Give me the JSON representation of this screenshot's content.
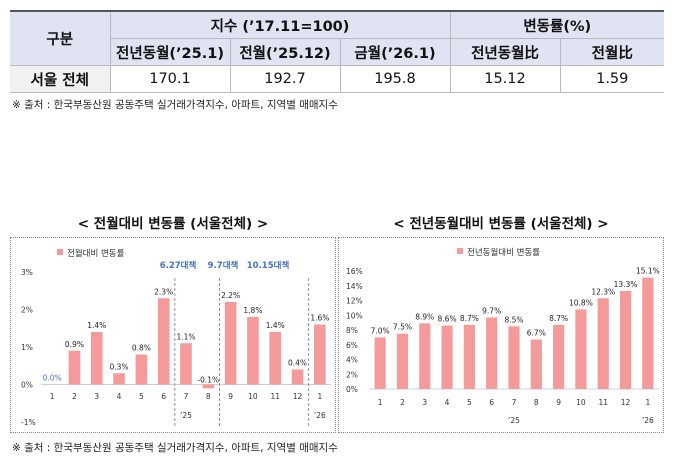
{
  "summary_table": {
    "col_group_label": "구분",
    "index_group_label": "지수 (’17.11=100)",
    "change_group_label": "변동률(%)",
    "sub_headers": [
      "전년동월(’25.1)",
      "전월(’25.12)",
      "금월(’26.1)",
      "전년동월比",
      "전월比"
    ],
    "row_label": "서울 전체",
    "row_values": [
      "170.1",
      "192.7",
      "195.8",
      "15.12",
      "1.59"
    ]
  },
  "source_note": "※ 출처 : 한국부동산원 공동주택 실거래가격지수, 아파트, 지역별 매매지수",
  "bar_color": "#f49a9a",
  "policy_label_color": "#4472c4",
  "chart_data": [
    {
      "type": "bar",
      "title": "< 전월대비 변동률 (서울전체) >",
      "legend": "전월대비 변동률",
      "categories": [
        "1",
        "2",
        "3",
        "4",
        "5",
        "6",
        "7",
        "8",
        "9",
        "10",
        "11",
        "12",
        "1"
      ],
      "year_labels": [
        "’25",
        "’26"
      ],
      "values": [
        0.0,
        0.9,
        1.4,
        0.3,
        0.8,
        2.3,
        1.1,
        -0.1,
        2.2,
        1.8,
        1.4,
        0.4,
        1.6
      ],
      "value_labels": [
        "0.0%",
        "0.9%",
        "1.4%",
        "0.3%",
        "0.8%",
        "2.3%",
        "1.1%",
        "-0.1%",
        "2.2%",
        "1.8%",
        "1.4%",
        "0.4%",
        "1.6%"
      ],
      "y_ticks": [
        -1,
        0,
        1,
        2,
        3
      ],
      "y_tick_labels": [
        "-1%",
        "0%",
        "1%",
        "2%",
        "3%"
      ],
      "ylim": [
        -1,
        3
      ],
      "annotations": [
        "6.27대책",
        "9.7대책",
        "10.15대책"
      ]
    },
    {
      "type": "bar",
      "title": "< 전년동월대비 변동률 (서울전체) >",
      "legend": "전년동월대비 변동률",
      "categories": [
        "1",
        "2",
        "3",
        "4",
        "5",
        "6",
        "7",
        "8",
        "9",
        "10",
        "11",
        "12",
        "1"
      ],
      "year_labels": [
        "’25",
        "’26"
      ],
      "values": [
        7.0,
        7.5,
        8.9,
        8.6,
        8.7,
        9.7,
        8.5,
        6.7,
        8.7,
        10.8,
        12.3,
        13.3,
        15.1
      ],
      "value_labels": [
        "7.0%",
        "7.5%",
        "8.9%",
        "8.6%",
        "8.7%",
        "9.7%",
        "8.5%",
        "6.7%",
        "8.7%",
        "10.8%",
        "12.3%",
        "13.3%",
        "15.1%"
      ],
      "y_ticks": [
        0,
        2,
        4,
        6,
        8,
        10,
        12,
        14,
        16
      ],
      "y_tick_labels": [
        "0%",
        "2%",
        "4%",
        "6%",
        "8%",
        "10%",
        "12%",
        "14%",
        "16%"
      ],
      "ylim": [
        0,
        16
      ]
    }
  ]
}
